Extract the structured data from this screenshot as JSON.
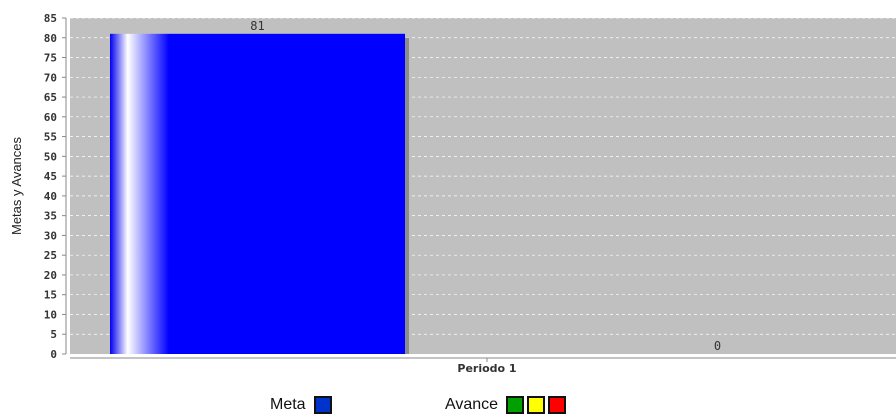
{
  "chart_data": {
    "type": "bar",
    "ylabel": "Metas y Avances",
    "xlabel": "",
    "title": "",
    "categories": [
      "Periodo 1"
    ],
    "series": [
      {
        "name": "Meta",
        "values": [
          81
        ],
        "color": "#0000ff"
      },
      {
        "name": "Avance",
        "values": [
          0
        ],
        "color": "#00aa00"
      }
    ],
    "data_labels": [
      "81",
      "0"
    ],
    "ylim": [
      0,
      85
    ],
    "yticks": [
      0,
      5,
      10,
      15,
      20,
      25,
      30,
      35,
      40,
      45,
      50,
      55,
      60,
      65,
      70,
      75,
      80,
      85
    ],
    "grid": true,
    "plot_background": "#c0c0c0",
    "legend_position": "bottom"
  },
  "legend": {
    "meta_label": "Meta",
    "meta_color": "#0033cc",
    "avance_label": "Avance",
    "avance_colors": [
      "#00a000",
      "#ffff00",
      "#ff0000"
    ]
  }
}
